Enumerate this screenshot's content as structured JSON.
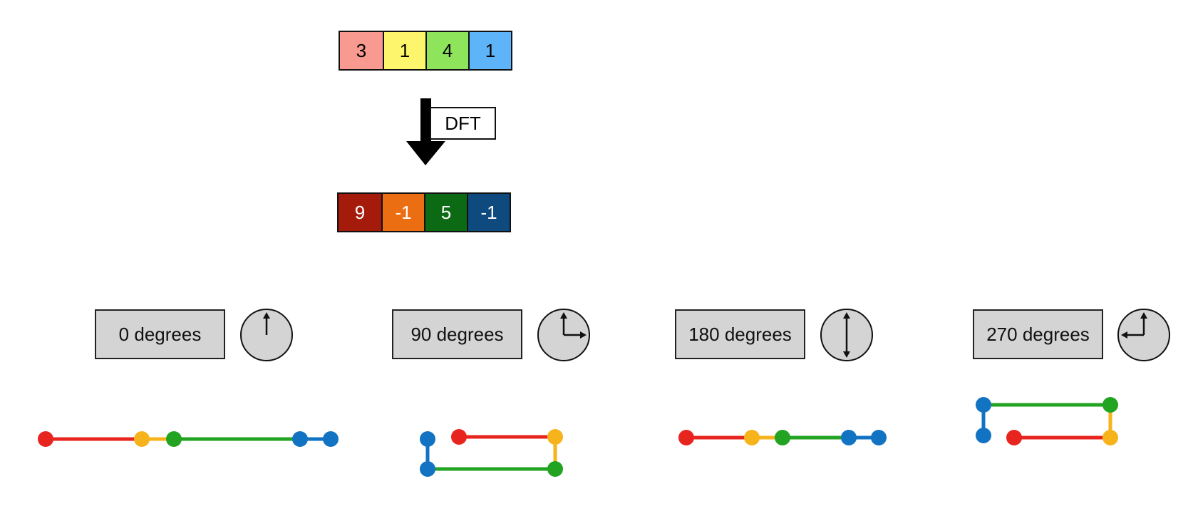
{
  "input": {
    "values": [
      "3",
      "1",
      "4",
      "1"
    ],
    "colors": [
      "#f99a90",
      "#fdf56b",
      "#8ee55c",
      "#5db4f8"
    ]
  },
  "transform_label": "DFT",
  "output": {
    "values": [
      "9",
      "-1",
      "5",
      "-1"
    ],
    "colors": [
      "#a51b0b",
      "#ec6e12",
      "#0d6a14",
      "#0f4a7e"
    ]
  },
  "rotations": [
    {
      "label": "0 degrees",
      "dial_icon": "clock-dial-0-icon"
    },
    {
      "label": "90 degrees",
      "dial_icon": "clock-dial-90-icon"
    },
    {
      "label": "180 degrees",
      "dial_icon": "clock-dial-180-icon"
    },
    {
      "label": "270 degrees",
      "dial_icon": "clock-dial-270-icon"
    }
  ],
  "segment_colors": {
    "red": "#e8241f",
    "yellow": "#f6b31c",
    "green": "#22a321",
    "blue": "#1273c2"
  }
}
